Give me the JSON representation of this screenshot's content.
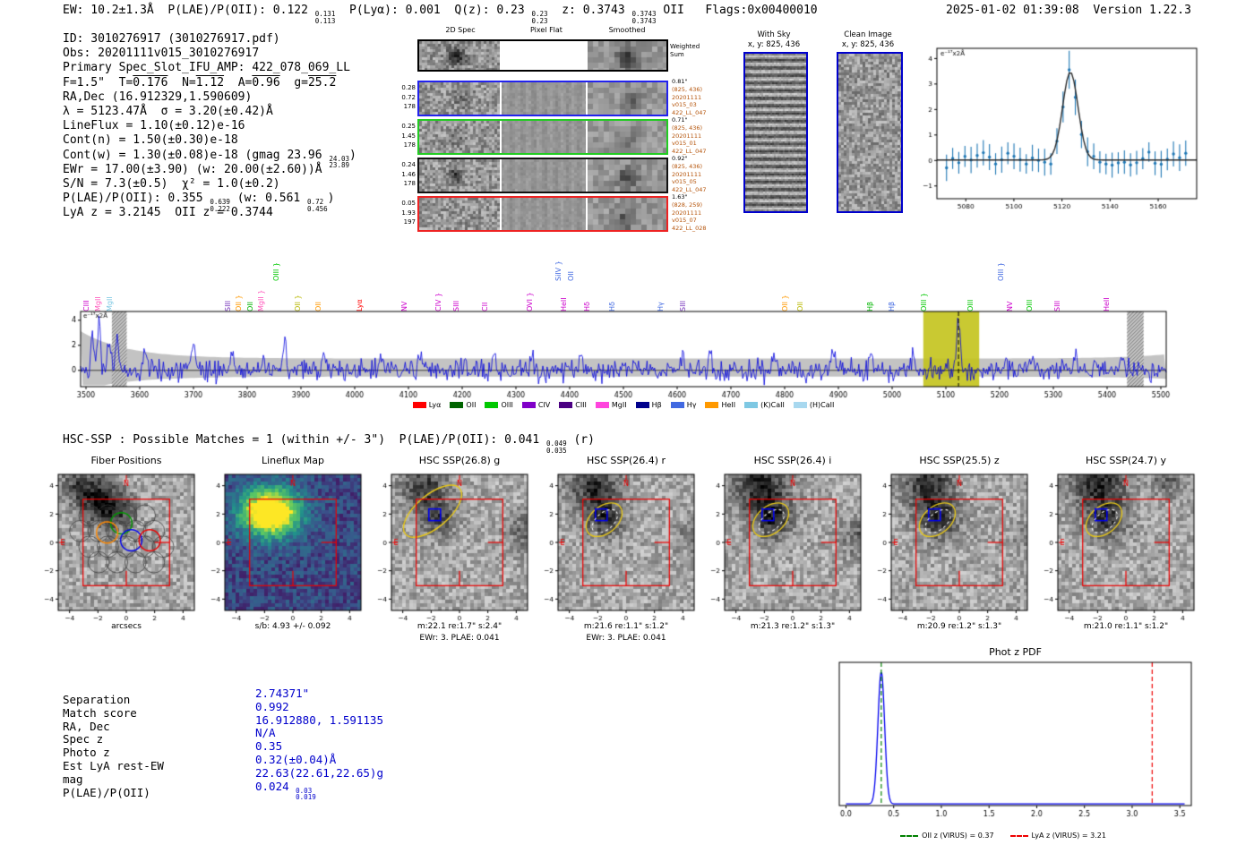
{
  "header": {
    "left": [
      {
        "t": "EW: 10.2±1.3Å  P(LAE)/P(OII): 0.122 "
      },
      {
        "stack": [
          "0.131",
          "0.113"
        ]
      },
      {
        "t": "  P(Lyα): 0.001  Q(z): 0.23 "
      },
      {
        "stack": [
          "0.23",
          "0.23"
        ]
      },
      {
        "t": "  z: 0.3743 "
      },
      {
        "stack": [
          "0.3743",
          "0.3743"
        ]
      },
      {
        "t": " OII   Flags:0x00400010"
      }
    ],
    "right": "2025-01-02 01:39:08  Version 1.22.3"
  },
  "info_block": {
    "lines": [
      [
        {
          "t": "ID: 3010276917 (3010276917.pdf)"
        }
      ],
      [
        {
          "t": "Obs: 20201111v015_3010276917"
        }
      ],
      [
        {
          "t": "Primary Spec_Slot_IFU_AMP: 422_078_069_LL"
        }
      ],
      [
        {
          "t": "F=1.5\"  T="
        },
        {
          "t": "0.176",
          "ov": true
        },
        {
          "t": "  N="
        },
        {
          "t": "1.12",
          "ov": true
        },
        {
          "t": "  A="
        },
        {
          "t": "0.96",
          "ov": true
        },
        {
          "t": "  g="
        },
        {
          "t": "25.2",
          "ov": true
        }
      ],
      [
        {
          "t": "RA,Dec (16.912329,1.590609)"
        }
      ],
      [
        {
          "t": "λ = 5123.47Å  σ = 3.20(±0.42)Å"
        }
      ],
      [
        {
          "t": "LineFlux = 1.10(±0.12)e-16"
        }
      ],
      [
        {
          "t": "Cont(n) = 1.50(±0.30)e-18"
        }
      ],
      [
        {
          "t": "Cont(w) = 1.30(±0.08)e-18 (gmag 23.96 "
        },
        {
          "stack": [
            "24.03",
            "23.89"
          ]
        },
        {
          "t": ")"
        }
      ],
      [
        {
          "t": "EWr = 17.00(±3.90) (w: 20.00(±2.60))Å"
        }
      ],
      [
        {
          "t": "S/N = 7.3(±0.5)  χ² = 1.0(±0.2)"
        }
      ],
      [
        {
          "t": "P(LAE)/P(OII): 0.355 "
        },
        {
          "stack": [
            "0.639",
            "0.222"
          ]
        },
        {
          "t": " (w: 0.561 "
        },
        {
          "stack": [
            "0.72",
            "0.456"
          ]
        },
        {
          "t": ")"
        }
      ],
      [
        {
          "t": "LyA z = 3.2145  OII z = 0.3744"
        }
      ]
    ]
  },
  "spec2d": {
    "col_headers": [
      "2D Spec",
      "Pixel Flat",
      "Smoothed"
    ],
    "weighted_sum": [
      "Weighted",
      "Sum"
    ],
    "annotation_color": "#b45309",
    "rows": [
      {
        "border": "#000000",
        "left_labels": [],
        "right_labels": []
      },
      {
        "border": "#2222ee",
        "left_labels": [
          "0.28",
          "0.72",
          "178"
        ],
        "right_labels": [
          "0.81\"",
          "(825, 436)",
          "20201111",
          "v015_03",
          "422_LL_047"
        ]
      },
      {
        "border": "#22cc22",
        "left_labels": [
          "0.25",
          "1.45",
          "178"
        ],
        "right_labels": [
          "0.71\"",
          "(825, 436)",
          "20201111",
          "v015_01",
          "422_LL_047"
        ]
      },
      {
        "border": "#111111",
        "left_labels": [
          "0.24",
          "1.46",
          "178"
        ],
        "right_labels": [
          "0.92\"",
          "(825, 436)",
          "20201111",
          "v015_05",
          "422_LL_047"
        ]
      },
      {
        "border": "#ee2222",
        "left_labels": [
          "0.05",
          "1.93",
          "197"
        ],
        "right_labels": [
          "1.63\"",
          "(828, 259)",
          "20201111",
          "v015_07",
          "422_LL_028"
        ]
      }
    ]
  },
  "withsky": {
    "title": "With Sky",
    "coords": "x, y: 825, 436"
  },
  "clean": {
    "title": "Clean Image",
    "coords": "x, y: 825, 436"
  },
  "hsc_header": {
    "segments": [
      {
        "t": "HSC-SSP : Possible Matches = 1 (within +/- 3\")  P(LAE)/P(OII): 0.041 "
      },
      {
        "stack": [
          "0.049",
          "0.035"
        ]
      },
      {
        "t": " (r)"
      }
    ]
  },
  "cutouts": {
    "tick_vals": [
      -4,
      -2,
      0,
      2,
      4
    ],
    "tick_labels": [
      "−4",
      "−2",
      "0",
      "2",
      "4"
    ],
    "compass": {
      "north": "N",
      "east": "E",
      "color": "#ee0000"
    },
    "box_color": "#ee0000",
    "aperture_color": "#e6c619",
    "panels": [
      {
        "title": "Fiber Positions",
        "caption1": "arcsecs",
        "caption2": "",
        "kind": "fibers"
      },
      {
        "title": "Lineflux Map",
        "caption1": "s/b: 4.93 +/- 0.092",
        "caption2": "",
        "kind": "viridis"
      },
      {
        "title": "HSC SSP(26.8) g",
        "caption1": "m:22.1 re:1.7\" s:2.4\"",
        "caption2": "EWr: 3. PLAE: 0.041",
        "kind": "gray",
        "aperture": "large",
        "dashed": false
      },
      {
        "title": "HSC SSP(26.4) r",
        "caption1": "m:21.6 re:1.1\" s:1.2\"",
        "caption2": "EWr: 3. PLAE: 0.041",
        "kind": "gray",
        "aperture": "small",
        "dashed": true
      },
      {
        "title": "HSC SSP(26.4) i",
        "caption1": "m:21.3 re:1.2\" s:1.3\"",
        "caption2": "",
        "kind": "gray",
        "aperture": "small",
        "dashed": true
      },
      {
        "title": "HSC SSP(25.5) z",
        "caption1": "m:20.9 re:1.2\" s:1.3\"",
        "caption2": "",
        "kind": "gray",
        "aperture": "small",
        "dashed": true
      },
      {
        "title": "HSC SSP(24.7) y",
        "caption1": "m:21.0 re:1.1\" s:1.2\"",
        "caption2": "",
        "kind": "gray",
        "aperture": "small",
        "dashed": true
      }
    ]
  },
  "match_table": {
    "value_color": "#0000cc",
    "rows": [
      {
        "label": "Separation",
        "value": "2.74371\""
      },
      {
        "label": "Match score",
        "value": "0.992"
      },
      {
        "label": "RA, Dec",
        "value": "16.912880, 1.591135"
      },
      {
        "label": "Spec z",
        "value": "N/A"
      },
      {
        "label": "Photo z",
        "value": "0.35"
      },
      {
        "label": "Est LyA rest-EW",
        "value": "0.32(±0.04)Å"
      },
      {
        "label": "mag",
        "value": "22.63(22.61,22.65)g"
      },
      {
        "label": "P(LAE)/P(OII)",
        "value": "0.024 ",
        "stack": [
          "0.03",
          "0.019"
        ]
      }
    ]
  },
  "chart_data": [
    {
      "id": "line_fit_zoom",
      "type": "line",
      "title": "",
      "ylabel_annotation": "e⁻¹⁷x2Å",
      "xlim": [
        5068,
        5176
      ],
      "ylim": [
        -1.5,
        4.4
      ],
      "x_ticks": [
        5080,
        5100,
        5120,
        5140,
        5160
      ],
      "y_tick_vals": [
        -1,
        0,
        1,
        2,
        3,
        4
      ],
      "y_tick_labels": [
        "−1",
        "0",
        "1",
        "2",
        "3",
        "4"
      ],
      "gaussian_fit": {
        "center": 5123.47,
        "sigma": 3.2,
        "amplitude": 3.45,
        "baseline": 0.02
      },
      "series_color": "#1f77b4",
      "fit_color": "#2a2a2a"
    },
    {
      "id": "full_spectrum",
      "type": "line",
      "ylabel_annotation": "e⁻¹⁷x2Å",
      "xlim": [
        3490,
        5510
      ],
      "ylim": [
        -1.3,
        4.7
      ],
      "x_ticks": [
        3500,
        3600,
        3700,
        3800,
        3900,
        4000,
        4100,
        4200,
        4300,
        4400,
        4500,
        4600,
        4700,
        4800,
        4900,
        5000,
        5100,
        5200,
        5300,
        5400,
        5500
      ],
      "y_ticks": [
        0,
        2,
        4
      ],
      "emission_peak": {
        "wavelength": 5123.47,
        "sigma": 3.2,
        "amplitude": 4.0
      },
      "highlight_band": [
        5058,
        5162
      ],
      "highlight_color": "#c3c31c",
      "hatch_bands": [
        [
          3548,
          3576
        ],
        [
          5437,
          5468
        ]
      ],
      "dashed_line_at": 5123.47,
      "line_color": "#0000dd",
      "noise_band_color": "rgba(145,145,145,0.55)",
      "line_labels": [
        {
          "text": "CIII",
          "wl": 3508,
          "color": "#cc00cc",
          "brace": false,
          "lift": 0
        },
        {
          "text": "MgII",
          "wl": 3530,
          "color": "#ff55bb",
          "brace": false,
          "lift": 0
        },
        {
          "text": "MgII",
          "wl": 3551,
          "color": "#7ec8e3",
          "brace": false,
          "lift": 0
        },
        {
          "text": "SIII",
          "wl": 3772,
          "color": "#7733bb",
          "brace": false,
          "lift": 0
        },
        {
          "text": "OII",
          "wl": 3792,
          "color": "#ff9900",
          "brace": true,
          "lift": 0
        },
        {
          "text": "OII",
          "wl": 3813,
          "color": "#00b400",
          "brace": false,
          "lift": 0
        },
        {
          "text": "MgII",
          "wl": 3834,
          "color": "#ff55bb",
          "brace": true,
          "lift": 0
        },
        {
          "text": "OIII",
          "wl": 3862,
          "color": "#00c800",
          "brace": true,
          "lift": 34
        },
        {
          "text": "OII",
          "wl": 3902,
          "color": "#b8b800",
          "brace": true,
          "lift": 0
        },
        {
          "text": "OII",
          "wl": 3940,
          "color": "#ff9900",
          "brace": false,
          "lift": 0
        },
        {
          "text": "Lyα",
          "wl": 4016,
          "color": "#ff0000",
          "brace": false,
          "lift": 0
        },
        {
          "text": "NV",
          "wl": 4100,
          "color": "#cc00cc",
          "brace": false,
          "lift": 0
        },
        {
          "text": "CIV",
          "wl": 4163,
          "color": "#cc00cc",
          "brace": true,
          "lift": 0
        },
        {
          "text": "SIII",
          "wl": 4196,
          "color": "#cc00cc",
          "brace": false,
          "lift": 0
        },
        {
          "text": "CII",
          "wl": 4250,
          "color": "#cc00cc",
          "brace": false,
          "lift": 0
        },
        {
          "text": "OVI",
          "wl": 4333,
          "color": "#cc00cc",
          "brace": true,
          "lift": 0
        },
        {
          "text": "SiIV",
          "wl": 4387,
          "color": "#4169e1",
          "brace": true,
          "lift": 34
        },
        {
          "text": "OII",
          "wl": 4410,
          "color": "#4169e1",
          "brace": false,
          "lift": 34
        },
        {
          "text": "HeII",
          "wl": 4396,
          "color": "#cc00cc",
          "brace": false,
          "lift": 0
        },
        {
          "text": "Hδ",
          "wl": 4440,
          "color": "#cc00cc",
          "brace": false,
          "lift": 0
        },
        {
          "text": "Hδ",
          "wl": 4487,
          "color": "#4169e1",
          "brace": false,
          "lift": 0
        },
        {
          "text": "Hγ",
          "wl": 4576,
          "color": "#4169e1",
          "brace": false,
          "lift": 0
        },
        {
          "text": "SIII",
          "wl": 4618,
          "color": "#7733bb",
          "brace": false,
          "lift": 0
        },
        {
          "text": "OII",
          "wl": 4808,
          "color": "#ff9900",
          "brace": true,
          "lift": 0
        },
        {
          "text": "OII",
          "wl": 4836,
          "color": "#b8b800",
          "brace": false,
          "lift": 0
        },
        {
          "text": "Hβ",
          "wl": 4966,
          "color": "#00b400",
          "brace": false,
          "lift": 0
        },
        {
          "text": "Hβ",
          "wl": 5007,
          "color": "#4169e1",
          "brace": false,
          "lift": 0
        },
        {
          "text": "OIII",
          "wl": 5066,
          "color": "#00c800",
          "brace": true,
          "lift": 0
        },
        {
          "text": "OIII",
          "wl": 5153,
          "color": "#00c800",
          "brace": false,
          "lift": 0
        },
        {
          "text": "OIII",
          "wl": 5210,
          "color": "#4169e1",
          "brace": true,
          "lift": 34
        },
        {
          "text": "NV",
          "wl": 5226,
          "color": "#cc00cc",
          "brace": false,
          "lift": 0
        },
        {
          "text": "OIII",
          "wl": 5263,
          "color": "#00c800",
          "brace": false,
          "lift": 0
        },
        {
          "text": "SIII",
          "wl": 5315,
          "color": "#cc00cc",
          "brace": false,
          "lift": 0
        },
        {
          "text": "HeII",
          "wl": 5407,
          "color": "#cc00cc",
          "brace": false,
          "lift": 0
        }
      ],
      "legend": [
        {
          "label": "Lyα",
          "color": "#ff0000"
        },
        {
          "label": "OII",
          "color": "#006400"
        },
        {
          "label": "OIII",
          "color": "#00c800"
        },
        {
          "label": "CIV",
          "color": "#8000c8"
        },
        {
          "label": "CIII",
          "color": "#4b0082"
        },
        {
          "label": "MgII",
          "color": "#ff44dd"
        },
        {
          "label": "Hβ",
          "color": "#00008b"
        },
        {
          "label": "Hγ",
          "color": "#4169e1"
        },
        {
          "label": "HeII",
          "color": "#ff9900"
        },
        {
          "label": "(K)CaII",
          "color": "#7ec8e3"
        },
        {
          "label": "(H)CaII",
          "color": "#a8d8ef"
        }
      ]
    },
    {
      "id": "photz_pdf",
      "type": "line",
      "title": "Phot z PDF",
      "xlim": [
        -0.07,
        3.62
      ],
      "x_tick_labels": [
        "0.0",
        "0.5",
        "1.0",
        "1.5",
        "2.0",
        "2.5",
        "3.0",
        "3.5"
      ],
      "x_tick_vals": [
        0.0,
        0.5,
        1.0,
        1.5,
        2.0,
        2.5,
        3.0,
        3.5
      ],
      "peak": {
        "z": 0.37,
        "sigma": 0.035,
        "height": 1.0
      },
      "curve_color": "#0000ee",
      "vlines": [
        {
          "z": 0.37,
          "color": "#008000",
          "label": "OII z (VIRUS) = 0.37"
        },
        {
          "z": 3.21,
          "color": "#ee0000",
          "label": "LyA z (VIRUS) = 3.21"
        }
      ]
    }
  ],
  "colors": {
    "value_blue": "#0000cc",
    "annotation_orange": "#b45309",
    "frame_blue": "#0000cc"
  }
}
